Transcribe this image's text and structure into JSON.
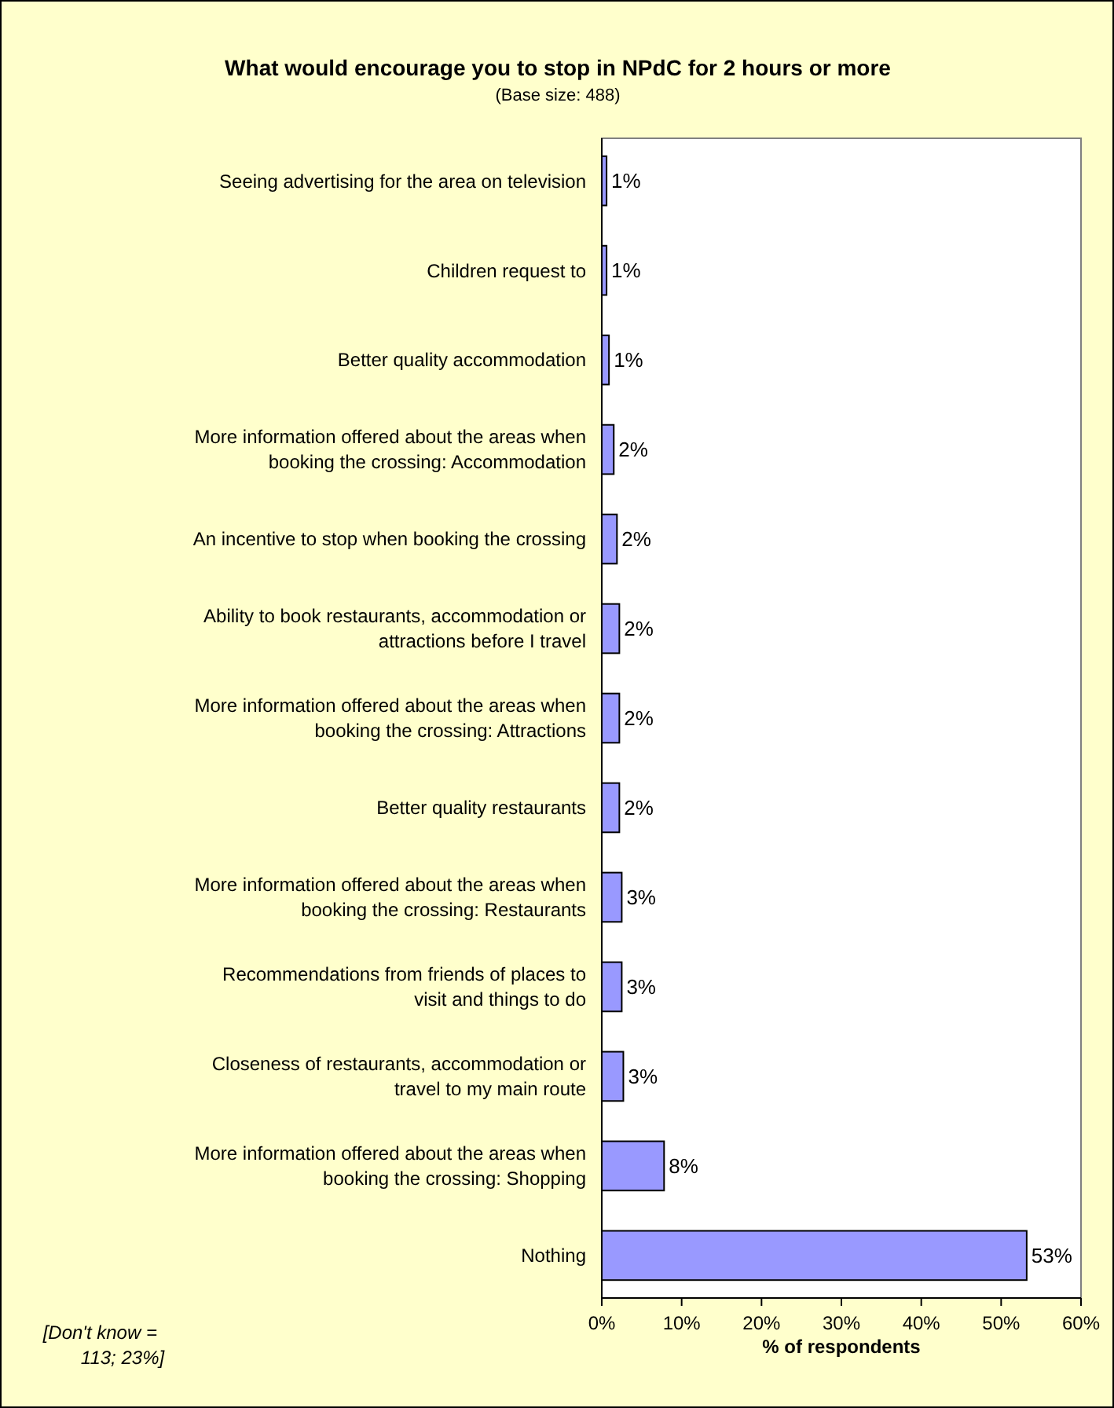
{
  "chart_data": {
    "type": "bar",
    "orientation": "horizontal",
    "title": "What would encourage you to stop in NPdC for 2 hours or more",
    "subtitle": "(Base size: 488)",
    "xlabel": "% of respondents",
    "categories": [
      "Seeing advertising for the area on television",
      "Children request to",
      "Better quality accommodation",
      "More information offered about the areas when booking the crossing: Accommodation",
      "An incentive to stop when booking the crossing",
      "Ability to book restaurants, accommodation or attractions before I travel",
      "More information offered about the areas when booking the crossing: Attractions",
      "Better quality restaurants",
      "More information offered about the areas when booking the crossing: Restaurants",
      "Recommendations from friends of places to visit and things to do",
      "Closeness of restaurants, accommodation or travel to my main route",
      "More information offered about the areas when booking the crossing: Shopping",
      "Nothing"
    ],
    "values": [
      0.6,
      0.6,
      0.9,
      1.5,
      1.9,
      2.2,
      2.2,
      2.2,
      2.5,
      2.5,
      2.7,
      7.8,
      53.2
    ],
    "value_labels": [
      "1%",
      "1%",
      "1%",
      "2%",
      "2%",
      "2%",
      "2%",
      "2%",
      "3%",
      "3%",
      "3%",
      "8%",
      "53%"
    ],
    "color": "#9999ff",
    "xlim": [
      0,
      60
    ],
    "xticks": [
      {
        "value": 0,
        "label": "0%"
      },
      {
        "value": 10,
        "label": "10%"
      },
      {
        "value": 20,
        "label": "20%"
      },
      {
        "value": 30,
        "label": "30%"
      },
      {
        "value": 40,
        "label": "40%"
      },
      {
        "value": 50,
        "label": "50%"
      },
      {
        "value": 60,
        "label": "60%"
      }
    ],
    "annotations": [
      "[Don't know = 113; 23%]"
    ],
    "grid": false
  }
}
